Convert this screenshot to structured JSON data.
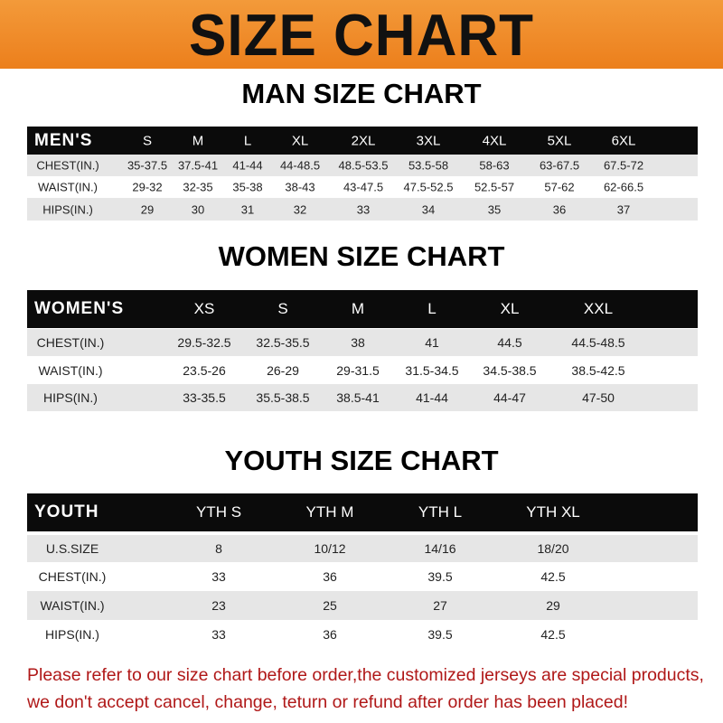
{
  "title": "SIZE CHART",
  "colors": {
    "banner": "#ee8a25",
    "header": "#0b0b0b",
    "stripe": "#e6e6e6",
    "note": "#b01818"
  },
  "men": {
    "title": "MAN SIZE CHART",
    "header": "MEN'S",
    "sizes": [
      "S",
      "M",
      "L",
      "XL",
      "2XL",
      "3XL",
      "4XL",
      "5XL",
      "6XL"
    ],
    "rows": [
      {
        "label": "CHEST(IN.)",
        "values": [
          "35-37.5",
          "37.5-41",
          "41-44",
          "44-48.5",
          "48.5-53.5",
          "53.5-58",
          "58-63",
          "63-67.5",
          "67.5-72"
        ]
      },
      {
        "label": "WAIST(IN.)",
        "values": [
          "29-32",
          "32-35",
          "35-38",
          "38-43",
          "43-47.5",
          "47.5-52.5",
          "52.5-57",
          "57-62",
          "62-66.5"
        ]
      },
      {
        "label": "HIPS(IN.)",
        "values": [
          "29",
          "30",
          "31",
          "32",
          "33",
          "34",
          "35",
          "36",
          "37"
        ]
      }
    ]
  },
  "women": {
    "title": "WOMEN SIZE CHART",
    "header": "WOMEN'S",
    "sizes": [
      "XS",
      "S",
      "M",
      "L",
      "XL",
      "XXL"
    ],
    "rows": [
      {
        "label": "CHEST(IN.)",
        "values": [
          "29.5-32.5",
          "32.5-35.5",
          "38",
          "41",
          "44.5",
          "44.5-48.5"
        ]
      },
      {
        "label": "WAIST(IN.)",
        "values": [
          "23.5-26",
          "26-29",
          "29-31.5",
          "31.5-34.5",
          "34.5-38.5",
          "38.5-42.5"
        ]
      },
      {
        "label": "HIPS(IN.)",
        "values": [
          "33-35.5",
          "35.5-38.5",
          "38.5-41",
          "41-44",
          "44-47",
          "47-50"
        ]
      }
    ]
  },
  "youth": {
    "title": "YOUTH SIZE CHART",
    "header": "YOUTH",
    "sizes": [
      "YTH S",
      "YTH M",
      "YTH L",
      "YTH XL"
    ],
    "rows": [
      {
        "label": "U.S.SIZE",
        "values": [
          "8",
          "10/12",
          "14/16",
          "18/20"
        ]
      },
      {
        "label": "CHEST(IN.)",
        "values": [
          "33",
          "36",
          "39.5",
          "42.5"
        ]
      },
      {
        "label": "WAIST(IN.)",
        "values": [
          "23",
          "25",
          "27",
          "29"
        ]
      },
      {
        "label": "HIPS(IN.)",
        "values": [
          "33",
          "36",
          "39.5",
          "42.5"
        ]
      }
    ]
  },
  "note": {
    "line1": "Please refer to our size chart before order,the customized jerseys are special products,",
    "line2": "we don't accept cancel, change, teturn or refund after order has been placed!"
  }
}
